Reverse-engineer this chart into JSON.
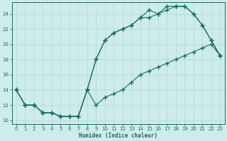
{
  "xlabel": "Humidex (Indice chaleur)",
  "bg_color": "#ceecea",
  "line_color": "#1a6b63",
  "grid_color": "#aed8d4",
  "xlim": [
    -0.5,
    23.5
  ],
  "ylim": [
    9.5,
    25.5
  ],
  "xticks": [
    0,
    1,
    2,
    3,
    4,
    5,
    6,
    7,
    8,
    9,
    10,
    11,
    12,
    13,
    14,
    15,
    16,
    17,
    18,
    19,
    20,
    21,
    22,
    23
  ],
  "yticks": [
    10,
    12,
    14,
    16,
    18,
    20,
    22,
    24
  ],
  "line1_x": [
    0,
    1,
    2,
    3,
    4,
    5,
    6,
    7,
    8,
    9,
    10,
    11,
    12,
    13,
    14,
    15,
    16,
    17,
    18,
    19,
    20,
    21,
    22,
    23
  ],
  "line1_y": [
    14,
    12,
    12,
    11,
    11,
    10.5,
    10.5,
    10.5,
    14,
    18,
    20.5,
    21.5,
    22,
    22.5,
    23.5,
    23.5,
    24,
    24.5,
    25,
    25,
    24,
    22.5,
    20.5,
    18.5
  ],
  "line2_x": [
    0,
    1,
    2,
    3,
    4,
    5,
    6,
    7,
    8,
    9,
    10,
    11,
    12,
    13,
    14,
    15,
    16,
    17,
    18,
    19,
    20,
    21,
    22,
    23
  ],
  "line2_y": [
    14,
    12,
    12,
    11,
    11,
    10.5,
    10.5,
    10.5,
    14,
    18,
    20.5,
    21.5,
    22,
    22.5,
    23.5,
    24.5,
    24,
    25,
    25,
    25,
    24,
    22.5,
    20.5,
    18.5
  ],
  "line3_x": [
    0,
    1,
    2,
    3,
    4,
    5,
    6,
    7,
    8,
    9,
    10,
    11,
    12,
    13,
    14,
    15,
    16,
    17,
    18,
    19,
    20,
    21,
    22,
    23
  ],
  "line3_y": [
    14,
    12,
    12,
    11,
    11,
    10.5,
    10.5,
    10.5,
    14,
    12,
    13,
    13.5,
    14,
    15,
    16,
    16.5,
    17,
    17.5,
    18,
    18.5,
    19,
    19.5,
    20,
    18.5
  ]
}
